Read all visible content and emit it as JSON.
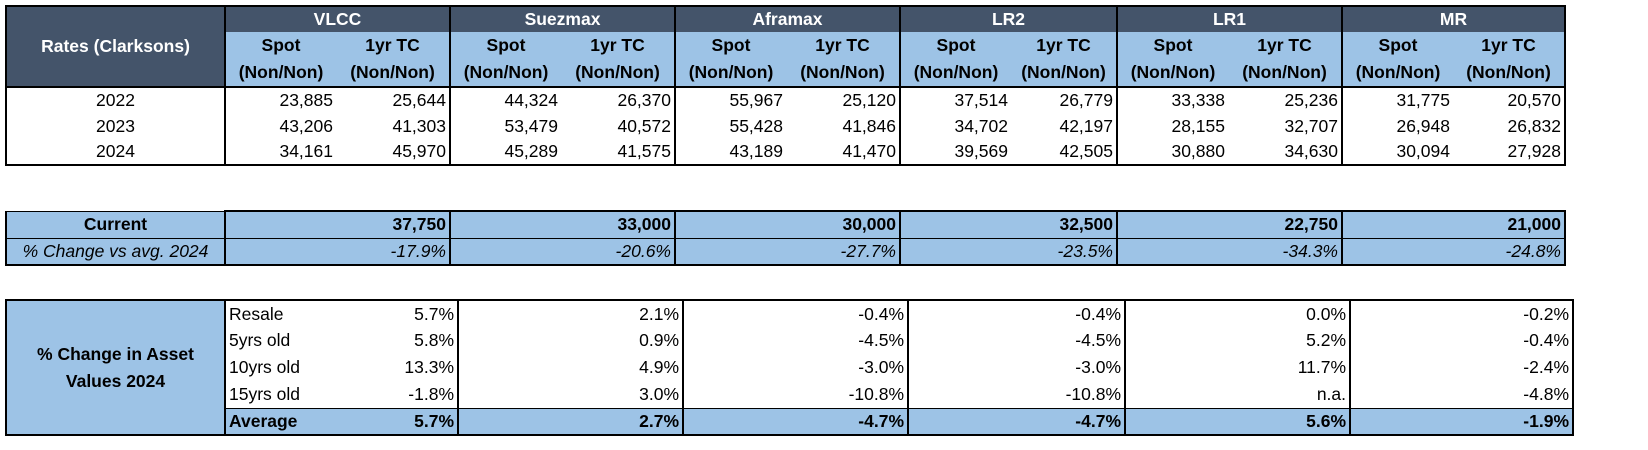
{
  "rates": {
    "title": "Rates (Clarksons)",
    "vessels": [
      "VLCC",
      "Suezmax",
      "Aframax",
      "LR2",
      "LR1",
      "MR"
    ],
    "spot_label_1": "Spot",
    "spot_label_2": "(Non/Non)",
    "tc_label_1": "1yr TC",
    "tc_label_2": "(Non/Non)",
    "rows": [
      {
        "year": "2022",
        "values": [
          "23,885",
          "25,644",
          "44,324",
          "26,370",
          "55,967",
          "25,120",
          "37,514",
          "26,779",
          "33,338",
          "25,236",
          "31,775",
          "20,570"
        ]
      },
      {
        "year": "2023",
        "values": [
          "43,206",
          "41,303",
          "53,479",
          "40,572",
          "55,428",
          "41,846",
          "34,702",
          "42,197",
          "28,155",
          "32,707",
          "26,948",
          "26,832"
        ]
      },
      {
        "year": "2024",
        "values": [
          "34,161",
          "45,970",
          "45,289",
          "41,575",
          "43,189",
          "41,470",
          "39,569",
          "42,505",
          "30,880",
          "34,630",
          "30,094",
          "27,928"
        ]
      }
    ]
  },
  "current": {
    "label": "Current",
    "values": [
      "37,750",
      "33,000",
      "30,000",
      "32,500",
      "22,750",
      "21,000"
    ],
    "change_label": "% Change vs avg. 2024",
    "change_values": [
      "-17.9%",
      "-20.6%",
      "-27.7%",
      "-23.5%",
      "-34.3%",
      "-24.8%"
    ]
  },
  "assets": {
    "title_line1": "% Change in Asset",
    "title_line2": "Values 2024",
    "rows": [
      {
        "label": "Resale",
        "values": [
          "5.7%",
          "2.1%",
          "-0.4%",
          "-0.4%",
          "0.0%",
          "-0.2%"
        ]
      },
      {
        "label": "5yrs old",
        "values": [
          "5.8%",
          "0.9%",
          "-4.5%",
          "-4.5%",
          "5.2%",
          "-0.4%"
        ]
      },
      {
        "label": "10yrs old",
        "values": [
          "13.3%",
          "4.9%",
          "-3.0%",
          "-3.0%",
          "11.7%",
          "-2.4%"
        ]
      },
      {
        "label": "15yrs old",
        "values": [
          "-1.8%",
          "3.0%",
          "-10.8%",
          "-10.8%",
          "n.a.",
          "-4.8%"
        ]
      }
    ],
    "average": {
      "label": "Average",
      "values": [
        "5.7%",
        "2.7%",
        "-4.7%",
        "-4.7%",
        "5.6%",
        "-1.9%"
      ]
    }
  },
  "colors": {
    "header_dark": "#44546a",
    "header_light": "#9dc3e6",
    "border": "#000000"
  }
}
